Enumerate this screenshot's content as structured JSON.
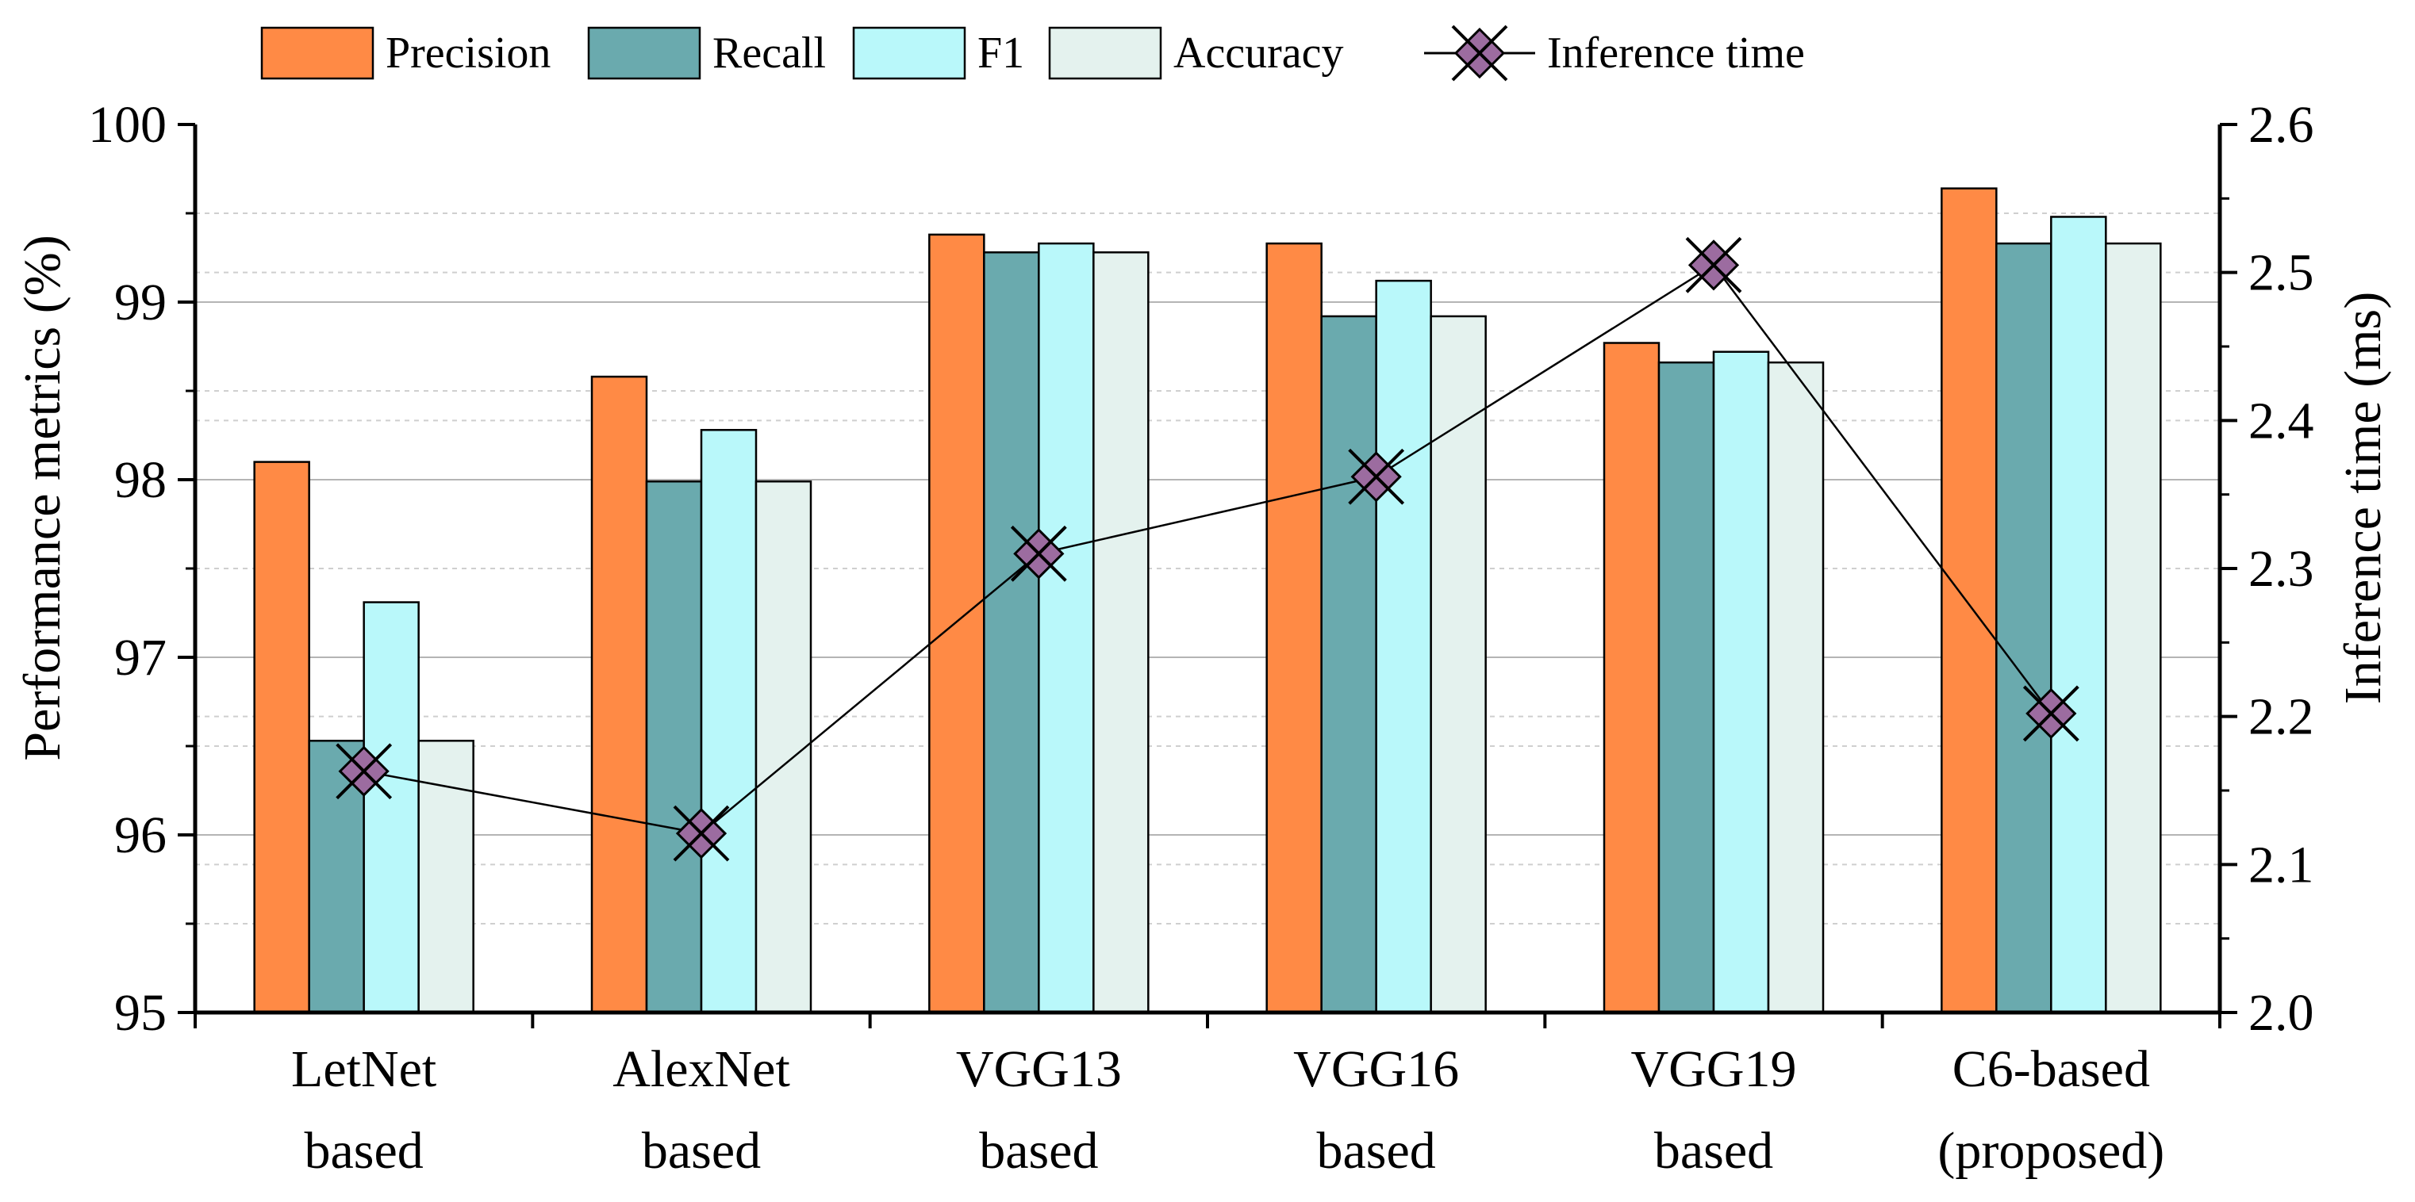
{
  "chart_data": {
    "type": "bar",
    "categories": [
      [
        "LetNet",
        "based"
      ],
      [
        "AlexNet",
        "based"
      ],
      [
        "VGG13",
        "based"
      ],
      [
        "VGG16",
        "based"
      ],
      [
        "VGG19",
        "based"
      ],
      [
        "C6-based",
        "(proposed)"
      ]
    ],
    "series": [
      {
        "name": "Precision",
        "color": "#FF8A45",
        "values": [
          98.1,
          98.58,
          99.38,
          99.33,
          98.77,
          99.64
        ]
      },
      {
        "name": "Recall",
        "color": "#6AAAAE",
        "values": [
          96.53,
          97.99,
          99.28,
          98.92,
          98.66,
          99.33
        ]
      },
      {
        "name": "F1",
        "color": "#B9F8FA",
        "values": [
          97.31,
          98.28,
          99.33,
          99.12,
          98.72,
          99.48
        ]
      },
      {
        "name": "Accuracy",
        "color": "#E4F2EE",
        "values": [
          96.53,
          97.99,
          99.28,
          98.92,
          98.66,
          99.33
        ]
      }
    ],
    "line_series": {
      "name": "Inference time",
      "color": "#9C6CA0",
      "axis": "right",
      "values": [
        2.163,
        2.121,
        2.31,
        2.362,
        2.505,
        2.202
      ]
    },
    "ylabel": "Performance metrics (%)",
    "y2label": "Inference time (ms)",
    "ylim": [
      95,
      100
    ],
    "y2lim": [
      2.0,
      2.6
    ],
    "yticks": [
      "95",
      "96",
      "97",
      "98",
      "99",
      "100"
    ],
    "y2ticks": [
      "2.0",
      "2.1",
      "2.2",
      "2.3",
      "2.4",
      "2.5",
      "2.6"
    ],
    "legend_position": "top",
    "grid": true
  }
}
